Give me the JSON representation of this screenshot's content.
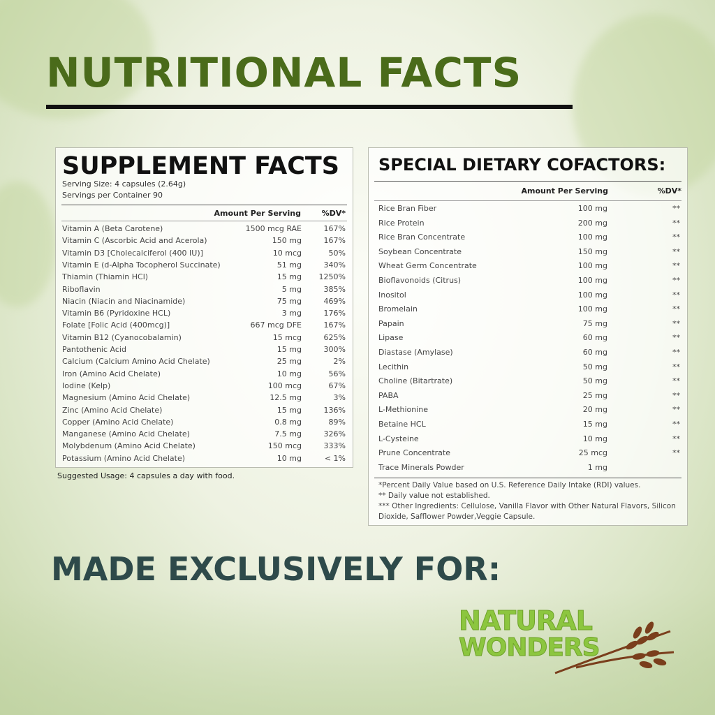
{
  "heading": "NUTRITIONAL FACTS",
  "supplement": {
    "title": "SUPPLEMENT FACTS",
    "serving_size": "Serving Size: 4 capsules (2.64g)",
    "servings_per_container": "Servings per Container 90",
    "col_amount": "Amount Per Serving",
    "col_dv": "%DV*",
    "rows": [
      [
        "Vitamin A (Beta Carotene)",
        "1500 mcg RAE",
        "167%"
      ],
      [
        "Vitamin C (Ascorbic Acid and Acerola)",
        "150 mg",
        "167%"
      ],
      [
        "Vitamin D3 [Cholecalciferol (400 IU)]",
        "10 mcg",
        "50%"
      ],
      [
        "Vitamin E (d-Alpha Tocopherol Succinate)",
        "51 mg",
        "340%"
      ],
      [
        "Thiamin (Thiamin HCl)",
        "15 mg",
        "1250%"
      ],
      [
        "Riboflavin",
        "5 mg",
        "385%"
      ],
      [
        "Niacin (Niacin and Niacinamide)",
        "75 mg",
        "469%"
      ],
      [
        "Vitamin B6 (Pyridoxine HCL)",
        "3 mg",
        "176%"
      ],
      [
        "Folate [Folic Acid (400mcg)]",
        "667 mcg DFE",
        "167%"
      ],
      [
        "Vitamin B12 (Cyanocobalamin)",
        "15 mcg",
        "625%"
      ],
      [
        "Pantothenic Acid",
        "15 mg",
        "300%"
      ],
      [
        "Calcium (Calcium Amino Acid Chelate)",
        "25 mg",
        "2%"
      ],
      [
        "Iron (Amino Acid Chelate)",
        "10 mg",
        "56%"
      ],
      [
        "Iodine (Kelp)",
        "100 mcg",
        "67%"
      ],
      [
        "Magnesium (Amino Acid Chelate)",
        "12.5 mg",
        "3%"
      ],
      [
        "Zinc (Amino Acid Chelate)",
        "15 mg",
        "136%"
      ],
      [
        "Copper (Amino Acid Chelate)",
        "0.8 mg",
        "89%"
      ],
      [
        "Manganese (Amino Acid Chelate)",
        "7.5 mg",
        "326%"
      ],
      [
        "Molybdenum (Amino Acid Chelate)",
        "150 mcg",
        "333%"
      ],
      [
        "Potassium (Amino Acid Chelate)",
        "10 mg",
        "< 1%"
      ]
    ],
    "usage": "Suggested Usage: 4 capsules a day with food."
  },
  "cofactors": {
    "title": "SPECIAL DIETARY COFACTORS:",
    "col_amount": "Amount Per Serving",
    "col_dv": "%DV*",
    "rows": [
      [
        "Rice Bran Fiber",
        "100 mg",
        "**"
      ],
      [
        "Rice Protein",
        "200 mg",
        "**"
      ],
      [
        "Rice Bran Concentrate",
        "100 mg",
        "**"
      ],
      [
        "Soybean Concentrate",
        "150 mg",
        "**"
      ],
      [
        "Wheat Germ Concentrate",
        "100 mg",
        "**"
      ],
      [
        "Bioflavonoids (Citrus)",
        "100 mg",
        "**"
      ],
      [
        "Inositol",
        "100 mg",
        "**"
      ],
      [
        "Bromelain",
        "100 mg",
        "**"
      ],
      [
        "Papain",
        "75 mg",
        "**"
      ],
      [
        "Lipase",
        "60 mg",
        "**"
      ],
      [
        "Diastase (Amylase)",
        "60 mg",
        "**"
      ],
      [
        "Lecithin",
        "50 mg",
        "**"
      ],
      [
        "Choline (Bitartrate)",
        "50 mg",
        "**"
      ],
      [
        "PABA",
        "25 mg",
        "**"
      ],
      [
        "L-Methionine",
        "20 mg",
        "**"
      ],
      [
        "Betaine HCL",
        "15 mg",
        "**"
      ],
      [
        "L-Cysteine",
        "10 mg",
        "**"
      ],
      [
        "Prune Concentrate",
        "25 mcg",
        "**"
      ],
      [
        "Trace Minerals Powder",
        "1 mg",
        ""
      ]
    ],
    "footnotes": [
      "*Percent Daily Value based on U.S. Reference Daily Intake (RDI) values.",
      "** Daily value not established.",
      "*** Other Ingredients: Cellulose, Vanilla Flavor with Other Natural Flavors, Silicon",
      "Dioxide, Safflower Powder,Veggie Capsule."
    ]
  },
  "made_for": "MADE EXCLUSIVELY FOR:",
  "logo": {
    "line1": "NATURAL",
    "line2": "WONDERS",
    "color": "#8cc63f",
    "wheat_color": "#7a3e1c"
  }
}
